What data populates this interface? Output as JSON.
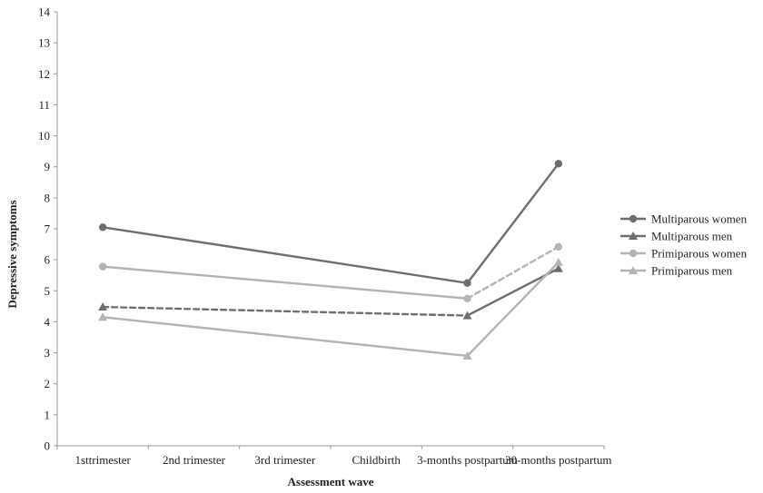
{
  "chart_data": {
    "type": "line",
    "xlabel": "Assessment wave",
    "ylabel": "Depressive symptoms",
    "ylim": [
      0,
      14
    ],
    "yticks": [
      0,
      1,
      2,
      3,
      4,
      5,
      6,
      7,
      8,
      9,
      10,
      11,
      12,
      13,
      14
    ],
    "grid": false,
    "legend_position": "right",
    "categories": [
      "1sttrimester",
      "2nd trimester",
      "3rd trimester",
      "Childbirth",
      "3-months postpartum",
      "30-months postpartum"
    ],
    "series": [
      {
        "name": "Multiparous women",
        "marker": "circle",
        "color": "#6e6e6e",
        "points": [
          {
            "category": "1sttrimester",
            "value": 7.05
          },
          {
            "category": "3-months postpartum",
            "value": 5.25
          },
          {
            "category": "30-months postpartum",
            "value": 9.1
          }
        ],
        "segment_styles": [
          "solid",
          "solid"
        ]
      },
      {
        "name": "Multiparous men",
        "marker": "triangle",
        "color": "#6e6e6e",
        "points": [
          {
            "category": "1sttrimester",
            "value": 4.48
          },
          {
            "category": "3-months postpartum",
            "value": 4.2
          },
          {
            "category": "30-months postpartum",
            "value": 5.72
          }
        ],
        "segment_styles": [
          "dashed",
          "solid"
        ]
      },
      {
        "name": "Primiparous women",
        "marker": "circle",
        "color": "#b4b4b4",
        "points": [
          {
            "category": "1sttrimester",
            "value": 5.78
          },
          {
            "category": "3-months postpartum",
            "value": 4.75
          },
          {
            "category": "30-months postpartum",
            "value": 6.42
          }
        ],
        "segment_styles": [
          "solid",
          "dashed"
        ]
      },
      {
        "name": "Primiparous men",
        "marker": "triangle",
        "color": "#b4b4b4",
        "points": [
          {
            "category": "1sttrimester",
            "value": 4.15
          },
          {
            "category": "3-months postpartum",
            "value": 2.9
          },
          {
            "category": "30-months postpartum",
            "value": 5.92
          }
        ],
        "segment_styles": [
          "solid",
          "solid"
        ]
      }
    ]
  }
}
